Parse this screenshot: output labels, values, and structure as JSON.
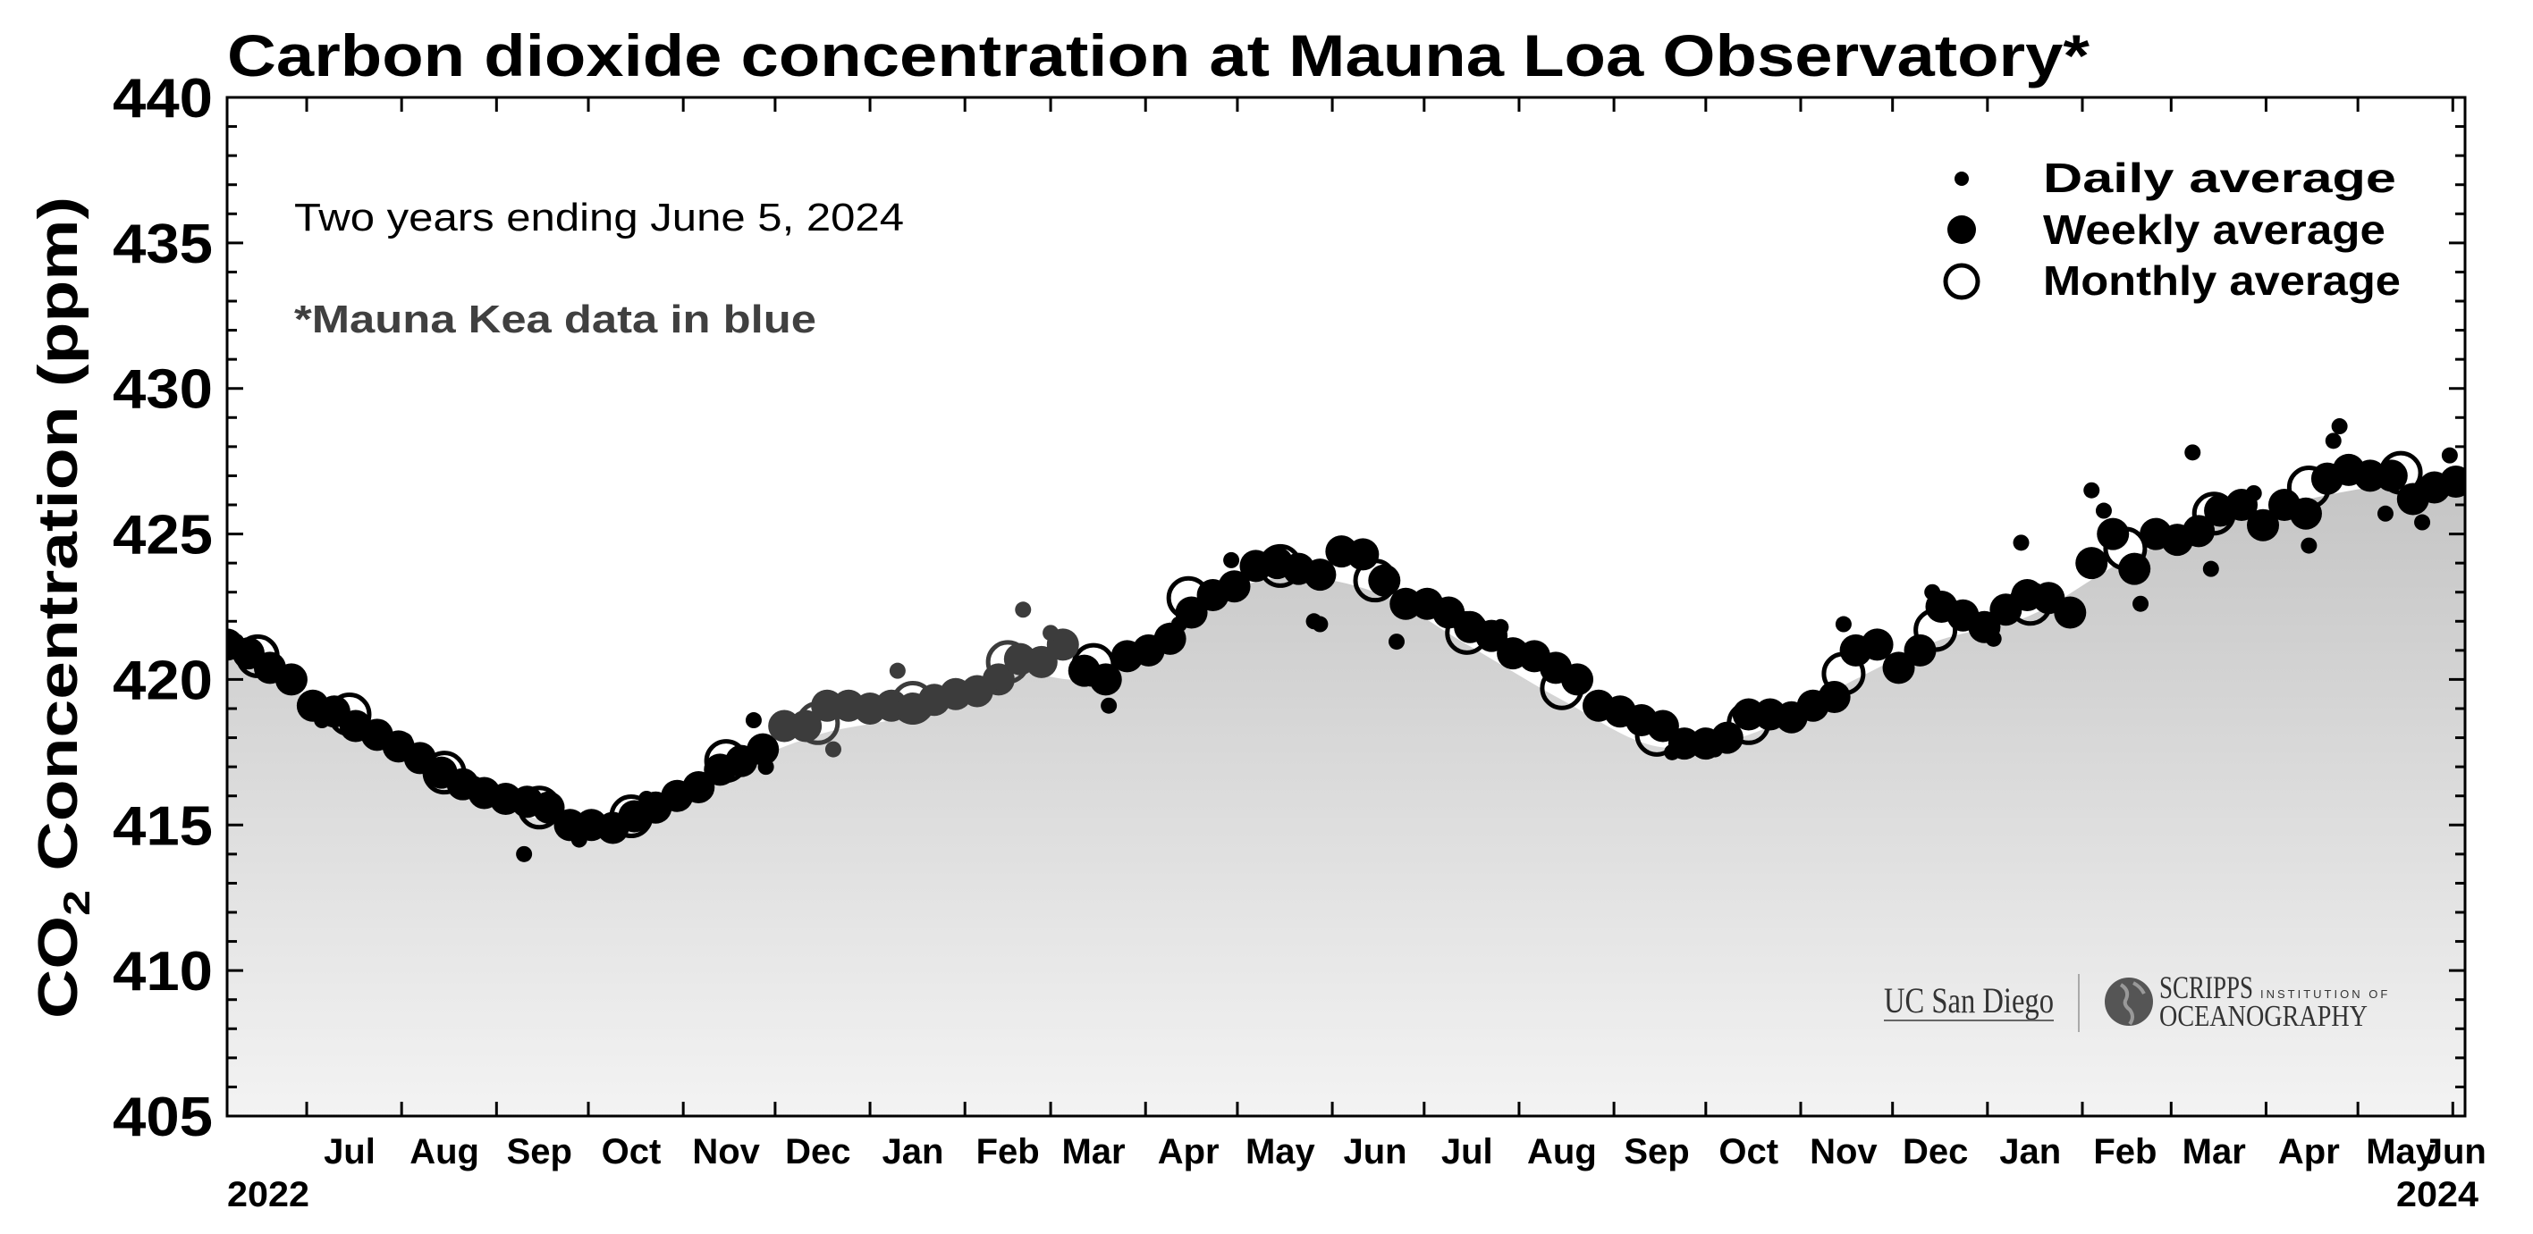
{
  "chart_data": {
    "type": "scatter",
    "title": "Carbon dioxide concentration at Mauna Loa Observatory*",
    "ylabel": "CO2 Concentration (ppm)",
    "ylabel_main": "CO",
    "ylabel_sub": "2",
    "ylabel_rest": " Concentration (ppm)",
    "xlabel": "",
    "subtitle": "Two years ending June 5, 2024",
    "note": "*Mauna Kea data in blue",
    "ylim": [
      405,
      440
    ],
    "y_ticks": [
      "405",
      "410",
      "415",
      "420",
      "425",
      "430",
      "435",
      "440"
    ],
    "xlim": [
      "2022-06-05",
      "2024-06-05"
    ],
    "x_tick_labels": [
      "Jul",
      "Aug",
      "Sep",
      "Oct",
      "Nov",
      "Dec",
      "Jan",
      "Feb",
      "Mar",
      "Apr",
      "May",
      "Jun",
      "Jul",
      "Aug",
      "Sep",
      "Oct",
      "Nov",
      "Dec",
      "Jan",
      "Feb",
      "Mar",
      "Apr",
      "May",
      "Jun"
    ],
    "x_year_labels": {
      "start": "2022",
      "end": "2024"
    },
    "grid": false,
    "legend": {
      "placement": "top-right",
      "entries": [
        {
          "label": "Daily average",
          "marker": "small-dot"
        },
        {
          "label": "Weekly average",
          "marker": "large-dot"
        },
        {
          "label": "Monthly average",
          "marker": "open-circle"
        }
      ]
    },
    "colors": {
      "mauna_loa": "#000000",
      "mauna_kea": "#3c3c3c",
      "fill_top": "#a9a9a9",
      "fill_bottom": "#f3f3f3"
    },
    "mauna_kea_period": [
      "2022-12-01",
      "2023-03-07"
    ],
    "series": [
      {
        "name": "Monthly average",
        "points": [
          [
            "2022-06-15",
            420.8
          ],
          [
            "2022-07-15",
            418.8
          ],
          [
            "2022-08-15",
            416.8
          ],
          [
            "2022-09-15",
            415.6
          ],
          [
            "2022-10-15",
            415.3
          ],
          [
            "2022-11-15",
            417.2
          ],
          [
            "2022-12-15",
            418.5
          ],
          [
            "2023-01-15",
            419.2
          ],
          [
            "2023-02-15",
            420.6
          ],
          [
            "2023-03-15",
            420.5
          ],
          [
            "2023-04-15",
            422.8
          ],
          [
            "2023-05-15",
            423.9
          ],
          [
            "2023-06-15",
            423.4
          ],
          [
            "2023-07-15",
            421.6
          ],
          [
            "2023-08-15",
            419.7
          ],
          [
            "2023-09-15",
            418.1
          ],
          [
            "2023-10-15",
            418.5
          ],
          [
            "2023-11-15",
            420.2
          ],
          [
            "2023-12-15",
            421.7
          ],
          [
            "2024-01-15",
            422.6
          ],
          [
            "2024-02-15",
            424.5
          ],
          [
            "2024-03-15",
            425.7
          ],
          [
            "2024-04-15",
            426.6
          ],
          [
            "2024-05-15",
            427.1
          ]
        ]
      },
      {
        "name": "Weekly average",
        "points": [
          [
            "2022-06-05",
            421.2
          ],
          [
            "2022-06-12",
            420.9
          ],
          [
            "2022-06-19",
            420.4
          ],
          [
            "2022-06-26",
            420.0
          ],
          [
            "2022-07-03",
            419.1
          ],
          [
            "2022-07-10",
            418.9
          ],
          [
            "2022-07-17",
            418.4
          ],
          [
            "2022-07-24",
            418.1
          ],
          [
            "2022-07-31",
            417.7
          ],
          [
            "2022-08-07",
            417.3
          ],
          [
            "2022-08-14",
            416.8
          ],
          [
            "2022-08-21",
            416.4
          ],
          [
            "2022-08-28",
            416.1
          ],
          [
            "2022-09-04",
            415.9
          ],
          [
            "2022-09-11",
            415.8
          ],
          [
            "2022-09-18",
            415.6
          ],
          [
            "2022-09-25",
            415.0
          ],
          [
            "2022-10-02",
            415.0
          ],
          [
            "2022-10-09",
            414.9
          ],
          [
            "2022-10-16",
            415.3
          ],
          [
            "2022-10-23",
            415.6
          ],
          [
            "2022-10-30",
            416.0
          ],
          [
            "2022-11-06",
            416.3
          ],
          [
            "2022-11-13",
            416.9
          ],
          [
            "2022-11-20",
            417.2
          ],
          [
            "2022-11-27",
            417.6
          ],
          [
            "2022-12-04",
            418.4
          ],
          [
            "2022-12-11",
            418.4
          ],
          [
            "2022-12-18",
            419.1
          ],
          [
            "2022-12-25",
            419.1
          ],
          [
            "2023-01-01",
            419.0
          ],
          [
            "2023-01-08",
            419.1
          ],
          [
            "2023-01-15",
            419.0
          ],
          [
            "2023-01-22",
            419.3
          ],
          [
            "2023-01-29",
            419.5
          ],
          [
            "2023-02-05",
            419.6
          ],
          [
            "2023-02-12",
            420.0
          ],
          [
            "2023-02-19",
            420.7
          ],
          [
            "2023-02-26",
            420.6
          ],
          [
            "2023-03-05",
            421.2
          ],
          [
            "2023-03-12",
            420.3
          ],
          [
            "2023-03-19",
            420.0
          ],
          [
            "2023-03-26",
            420.8
          ],
          [
            "2023-04-02",
            421.0
          ],
          [
            "2023-04-09",
            421.4
          ],
          [
            "2023-04-16",
            422.3
          ],
          [
            "2023-04-23",
            422.9
          ],
          [
            "2023-04-30",
            423.2
          ],
          [
            "2023-05-07",
            423.9
          ],
          [
            "2023-05-14",
            424.0
          ],
          [
            "2023-05-21",
            423.8
          ],
          [
            "2023-05-28",
            423.6
          ],
          [
            "2023-06-04",
            424.4
          ],
          [
            "2023-06-11",
            424.3
          ],
          [
            "2023-06-18",
            423.4
          ],
          [
            "2023-06-25",
            422.6
          ],
          [
            "2023-07-02",
            422.6
          ],
          [
            "2023-07-09",
            422.3
          ],
          [
            "2023-07-16",
            421.8
          ],
          [
            "2023-07-23",
            421.5
          ],
          [
            "2023-07-30",
            420.9
          ],
          [
            "2023-08-06",
            420.8
          ],
          [
            "2023-08-13",
            420.4
          ],
          [
            "2023-08-20",
            420.0
          ],
          [
            "2023-08-27",
            419.1
          ],
          [
            "2023-09-03",
            418.9
          ],
          [
            "2023-09-10",
            418.6
          ],
          [
            "2023-09-17",
            418.4
          ],
          [
            "2023-09-24",
            417.8
          ],
          [
            "2023-10-01",
            417.8
          ],
          [
            "2023-10-08",
            418.0
          ],
          [
            "2023-10-15",
            418.8
          ],
          [
            "2023-10-22",
            418.8
          ],
          [
            "2023-10-29",
            418.7
          ],
          [
            "2023-11-05",
            419.1
          ],
          [
            "2023-11-12",
            419.4
          ],
          [
            "2023-11-19",
            421.0
          ],
          [
            "2023-11-26",
            421.2
          ],
          [
            "2023-12-03",
            420.4
          ],
          [
            "2023-12-10",
            421.0
          ],
          [
            "2023-12-17",
            422.5
          ],
          [
            "2023-12-24",
            422.2
          ],
          [
            "2023-12-31",
            421.8
          ],
          [
            "2024-01-07",
            422.4
          ],
          [
            "2024-01-14",
            422.9
          ],
          [
            "2024-01-21",
            422.8
          ],
          [
            "2024-01-28",
            422.3
          ],
          [
            "2024-02-04",
            424.0
          ],
          [
            "2024-02-11",
            425.0
          ],
          [
            "2024-02-18",
            423.8
          ],
          [
            "2024-02-25",
            425.0
          ],
          [
            "2024-03-03",
            424.8
          ],
          [
            "2024-03-10",
            425.1
          ],
          [
            "2024-03-17",
            425.8
          ],
          [
            "2024-03-24",
            426.0
          ],
          [
            "2024-03-31",
            425.3
          ],
          [
            "2024-04-07",
            426.0
          ],
          [
            "2024-04-14",
            425.7
          ],
          [
            "2024-04-21",
            426.9
          ],
          [
            "2024-04-28",
            427.2
          ],
          [
            "2024-05-05",
            427.0
          ],
          [
            "2024-05-12",
            427.0
          ],
          [
            "2024-05-19",
            426.2
          ],
          [
            "2024-05-26",
            426.6
          ],
          [
            "2024-06-02",
            426.8
          ]
        ]
      },
      {
        "name": "Daily average",
        "points": [
          [
            "2022-06-08",
            421.3
          ],
          [
            "2022-07-06",
            418.6
          ],
          [
            "2022-08-02",
            417.9
          ],
          [
            "2022-08-25",
            416.4
          ],
          [
            "2022-09-10",
            414.0
          ],
          [
            "2022-09-28",
            414.5
          ],
          [
            "2022-10-20",
            415.9
          ],
          [
            "2022-11-08",
            416.5
          ],
          [
            "2022-11-24",
            418.6
          ],
          [
            "2022-11-28",
            417.0
          ],
          [
            "2022-12-20",
            417.6
          ],
          [
            "2023-01-10",
            420.3
          ],
          [
            "2023-02-10",
            419.9
          ],
          [
            "2023-02-20",
            422.4
          ],
          [
            "2023-03-01",
            421.6
          ],
          [
            "2023-03-20",
            419.1
          ],
          [
            "2023-04-12",
            421.9
          ],
          [
            "2023-04-29",
            424.1
          ],
          [
            "2023-05-26",
            422.0
          ],
          [
            "2023-05-28",
            421.9
          ],
          [
            "2023-06-22",
            421.3
          ],
          [
            "2023-07-12",
            422.0
          ],
          [
            "2023-07-26",
            421.8
          ],
          [
            "2023-08-10",
            420.5
          ],
          [
            "2023-09-20",
            417.5
          ],
          [
            "2023-10-04",
            417.6
          ],
          [
            "2023-11-15",
            421.9
          ],
          [
            "2023-12-14",
            423.0
          ],
          [
            "2024-01-03",
            421.4
          ],
          [
            "2024-01-12",
            424.7
          ],
          [
            "2024-02-04",
            426.5
          ],
          [
            "2024-02-08",
            425.8
          ],
          [
            "2024-02-20",
            422.6
          ],
          [
            "2024-03-08",
            427.8
          ],
          [
            "2024-03-14",
            423.8
          ],
          [
            "2024-03-28",
            426.4
          ],
          [
            "2024-04-15",
            424.6
          ],
          [
            "2024-04-23",
            428.2
          ],
          [
            "2024-04-25",
            428.7
          ],
          [
            "2024-05-10",
            425.7
          ],
          [
            "2024-05-22",
            425.4
          ],
          [
            "2024-05-31",
            427.7
          ]
        ]
      }
    ]
  },
  "logos": {
    "ucsd": "UC San Diego",
    "scripps_main": "SCRIPPS",
    "scripps_small": "INSTITUTION OF",
    "scripps_bottom": "OCEANOGRAPHY"
  }
}
